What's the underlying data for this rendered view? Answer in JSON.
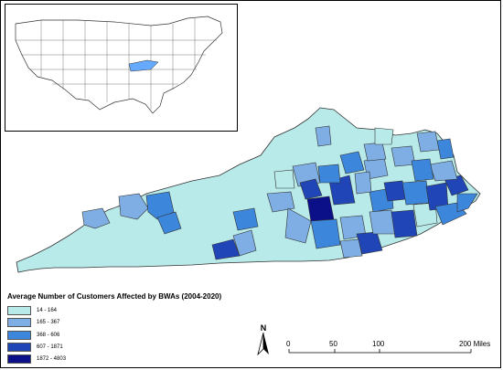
{
  "legend": {
    "title": "Average Number of Customers Affected by BWAs (2004-2020)",
    "classes": [
      {
        "label": "14 - 164",
        "color": "#b9eaea"
      },
      {
        "label": "165 - 367",
        "color": "#7eaee3"
      },
      {
        "label": "368 - 606",
        "color": "#3c86dc"
      },
      {
        "label": "607 - 1871",
        "color": "#2045b6"
      },
      {
        "label": "1872 - 4803",
        "color": "#0b0f88"
      }
    ]
  },
  "north_arrow": {
    "letter": "N"
  },
  "scale": {
    "labels": [
      "0",
      "50",
      "100",
      "200 Miles"
    ],
    "miles": [
      0,
      50,
      100,
      200
    ]
  },
  "colors": {
    "outline": "#333333",
    "inset_highlight": "#66aaff",
    "background": "#ffffff"
  },
  "icons": [
    "north-arrow-icon"
  ]
}
